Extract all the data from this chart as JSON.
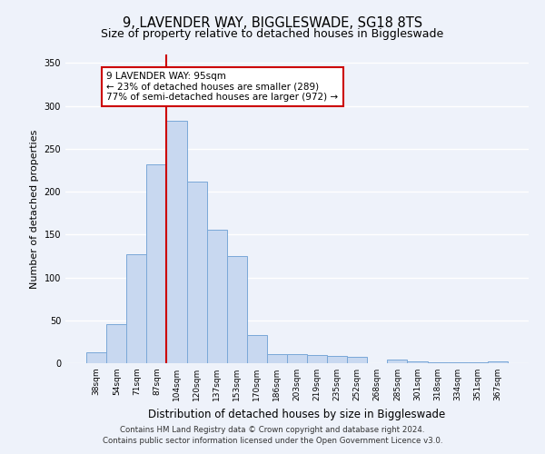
{
  "title": "9, LAVENDER WAY, BIGGLESWADE, SG18 8TS",
  "subtitle": "Size of property relative to detached houses in Biggleswade",
  "xlabel": "Distribution of detached houses by size in Biggleswade",
  "ylabel": "Number of detached properties",
  "bar_labels": [
    "38sqm",
    "54sqm",
    "71sqm",
    "87sqm",
    "104sqm",
    "120sqm",
    "137sqm",
    "153sqm",
    "170sqm",
    "186sqm",
    "203sqm",
    "219sqm",
    "235sqm",
    "252sqm",
    "268sqm",
    "285sqm",
    "301sqm",
    "318sqm",
    "334sqm",
    "351sqm",
    "367sqm"
  ],
  "bar_values": [
    13,
    46,
    127,
    232,
    283,
    212,
    156,
    125,
    33,
    11,
    11,
    10,
    9,
    7,
    0,
    4,
    2,
    1,
    1,
    1,
    2
  ],
  "bar_color": "#c8d8f0",
  "bar_edge_color": "#7aa8d8",
  "ylim": [
    0,
    360
  ],
  "yticks": [
    0,
    50,
    100,
    150,
    200,
    250,
    300,
    350
  ],
  "vline_color": "#cc0000",
  "vline_position": 3.5,
  "annotation_title": "9 LAVENDER WAY: 95sqm",
  "annotation_line1": "← 23% of detached houses are smaller (289)",
  "annotation_line2": "77% of semi-detached houses are larger (972) →",
  "annotation_box_color": "#cc0000",
  "footer_line1": "Contains HM Land Registry data © Crown copyright and database right 2024.",
  "footer_line2": "Contains public sector information licensed under the Open Government Licence v3.0.",
  "background_color": "#eef2fa",
  "grid_color": "#ffffff"
}
